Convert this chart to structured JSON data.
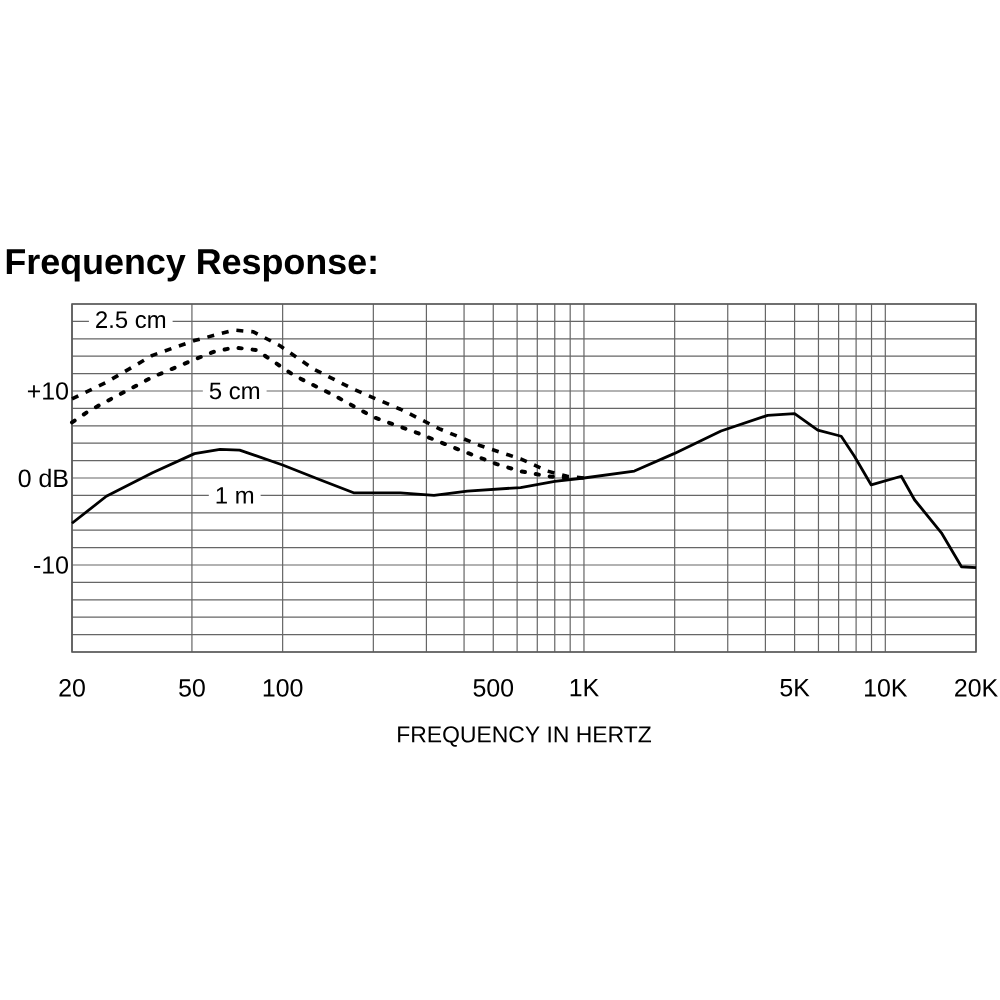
{
  "chart_data": {
    "type": "line",
    "title": "Frequency Response:",
    "xlabel": "FREQUENCY IN HERTZ",
    "log": "x",
    "grid": true,
    "legend": false,
    "marker": "none",
    "xlim": [
      20,
      20000
    ],
    "xticks": [
      20,
      50,
      100,
      {
        "value": 200,
        "label": null
      },
      {
        "value": 300,
        "label": null
      },
      {
        "value": 400,
        "label": null
      },
      500,
      {
        "value": 600,
        "label": null
      },
      {
        "value": 700,
        "label": null
      },
      {
        "value": 800,
        "label": null
      },
      {
        "value": 900,
        "label": null
      },
      {
        "value": 1000,
        "label": "1K"
      },
      {
        "value": 2000,
        "label": null
      },
      {
        "value": 3000,
        "label": null
      },
      {
        "value": 4000,
        "label": null
      },
      {
        "value": 5000,
        "label": "5K"
      },
      {
        "value": 6000,
        "label": null
      },
      {
        "value": 7000,
        "label": null
      },
      {
        "value": 8000,
        "label": null
      },
      {
        "value": 9000,
        "label": null
      },
      {
        "value": 10000,
        "label": "10K"
      },
      {
        "value": 20000,
        "label": "20K"
      }
    ],
    "ylim": [
      -20,
      20
    ],
    "yticks": [
      {
        "value": -20,
        "label": null
      },
      {
        "value": -18,
        "label": null
      },
      {
        "value": -16,
        "label": null
      },
      {
        "value": -14,
        "label": null
      },
      {
        "value": -12,
        "label": null
      },
      {
        "value": -10,
        "label": "-10"
      },
      {
        "value": -8,
        "label": null
      },
      {
        "value": -6,
        "label": null
      },
      {
        "value": -4,
        "label": null
      },
      {
        "value": -2,
        "label": null
      },
      {
        "value": 0,
        "label": "0 dB"
      },
      {
        "value": 2,
        "label": null
      },
      {
        "value": 4,
        "label": null
      },
      {
        "value": 6,
        "label": null
      },
      {
        "value": 8,
        "label": null
      },
      {
        "value": 10,
        "label": "+10"
      },
      {
        "value": 12,
        "label": null
      },
      {
        "value": 14,
        "label": null
      },
      {
        "value": 16,
        "label": null
      },
      {
        "value": 18,
        "label": null
      },
      {
        "value": 20,
        "label": null
      }
    ],
    "series": [
      {
        "name": "2.5 cm",
        "color": "#000000",
        "line_style": "dashed",
        "x": [
          20,
          26,
          37,
          51,
          69,
          80,
          98,
          127,
          172,
          246,
          334,
          454,
          616,
          756,
          880,
          1000
        ],
        "values": [
          9.1,
          11,
          14.1,
          15.8,
          17,
          16.8,
          15.2,
          12.5,
          10.2,
          7.9,
          5.6,
          3.7,
          2.2,
          0.8,
          0.2,
          0
        ]
      },
      {
        "name": "5 cm",
        "color": "#000000",
        "line_style": "dotted",
        "x": [
          20,
          23,
          27,
          37,
          50,
          59,
          69,
          82,
          94,
          109,
          148,
          200,
          279,
          382,
          514,
          612,
          756,
          880
        ],
        "values": [
          6.4,
          7.8,
          9.1,
          11.6,
          13.5,
          14.5,
          15,
          14.7,
          13.3,
          11.8,
          9.5,
          7,
          5.2,
          3.3,
          1.6,
          0.8,
          0.2,
          0
        ]
      },
      {
        "name": "1 m",
        "color": "#000000",
        "line_style": "solid",
        "x": [
          20,
          26,
          37,
          51,
          62,
          72,
          100,
          133,
          172,
          246,
          318,
          410,
          616,
          800,
          1000,
          1470,
          1990,
          2850,
          4070,
          5000,
          5970,
          7140,
          7900,
          8980,
          11300,
          12500,
          15350,
          17900,
          20000
        ],
        "values": [
          -5.2,
          -2.1,
          0.6,
          2.8,
          3.3,
          3.2,
          1.5,
          -0.2,
          -1.7,
          -1.7,
          -2,
          -1.5,
          -1.1,
          -0.4,
          0,
          0.8,
          2.8,
          5.4,
          7.2,
          7.4,
          5.5,
          4.8,
          2.5,
          -0.8,
          0.2,
          -2.5,
          -6.3,
          -10.2,
          -10.3
        ]
      }
    ]
  }
}
